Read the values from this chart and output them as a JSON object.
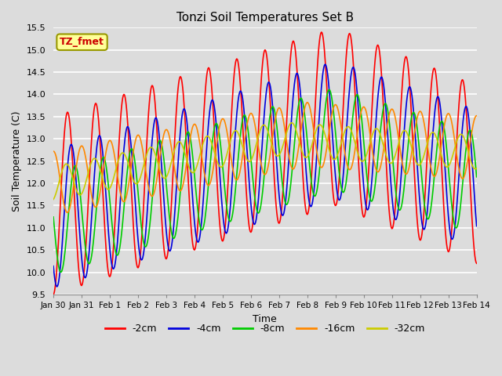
{
  "title": "Tonzi Soil Temperatures Set B",
  "xlabel": "Time",
  "ylabel": "Soil Temperature (C)",
  "ylim": [
    9.5,
    15.5
  ],
  "bg_color": "#dcdcdc",
  "plot_bg_color": "#dcdcdc",
  "annotation_text": "TZ_fmet",
  "annotation_color": "#cc0000",
  "annotation_bg": "#ffff99",
  "annotation_border": "#999900",
  "series_colors": [
    "#ff0000",
    "#0000dd",
    "#00cc00",
    "#ff8800",
    "#cccc00"
  ],
  "series_labels": [
    "-2cm",
    "-4cm",
    "-8cm",
    "-16cm",
    "-32cm"
  ],
  "xtick_labels": [
    "Jan 30",
    "Jan 31",
    "Feb 1",
    "Feb 2",
    "Feb 3",
    "Feb 4",
    "Feb 5",
    "Feb 6",
    "Feb 7",
    "Feb 8",
    "Feb 9",
    "Feb 10",
    "Feb 11",
    "Feb 12",
    "Feb 13",
    "Feb 14"
  ],
  "ytick_values": [
    9.5,
    10.0,
    10.5,
    11.0,
    11.5,
    12.0,
    12.5,
    13.0,
    13.5,
    14.0,
    14.5,
    15.0,
    15.5
  ],
  "linewidth": 1.2,
  "n_days": 15,
  "pts_per_day": 48
}
